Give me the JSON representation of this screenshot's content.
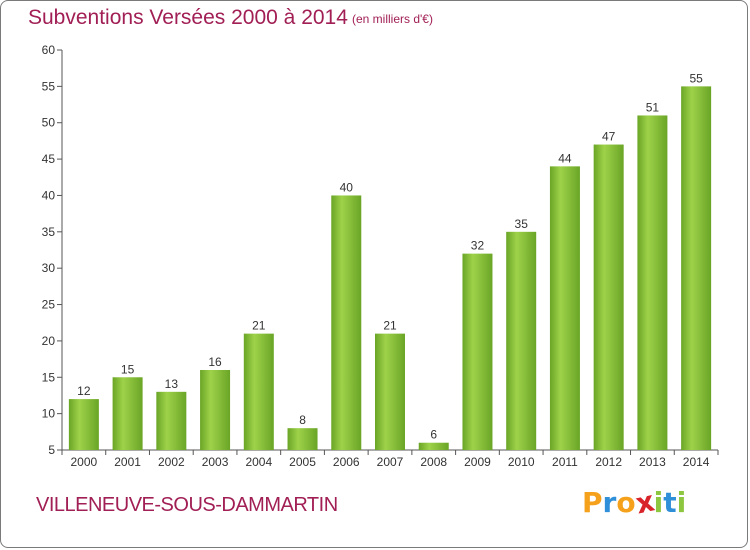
{
  "chart_data": {
    "type": "bar",
    "title": "Subventions Versées 2000 à 2014",
    "subtitle": "(en milliers d'€)",
    "categories": [
      "2000",
      "2001",
      "2002",
      "2003",
      "2004",
      "2005",
      "2006",
      "2007",
      "2008",
      "2009",
      "2010",
      "2011",
      "2012",
      "2013",
      "2014"
    ],
    "values": [
      12,
      15,
      13,
      16,
      21,
      8,
      40,
      21,
      6,
      32,
      35,
      44,
      47,
      51,
      55
    ],
    "ylim": [
      5,
      60
    ],
    "yticks": [
      5,
      10,
      15,
      20,
      25,
      30,
      35,
      40,
      45,
      50,
      55,
      60
    ],
    "grid": false,
    "bar_color": "#7cb82f",
    "bar_highlight": "#9ed24a"
  },
  "commune": "VILLENEUVE-SOUS-DAMMARTIN",
  "logo": {
    "letters": [
      "P",
      "r",
      "o",
      "x",
      "i",
      "t",
      "i"
    ],
    "colors": [
      "#f5a11c",
      "#2f8fd8",
      "#f5a11c",
      "#d8232a",
      "#8dc63f",
      "#2f8fd8",
      "#8dc63f"
    ]
  },
  "colors": {
    "title": "#a11f55",
    "axis": "#333333"
  }
}
